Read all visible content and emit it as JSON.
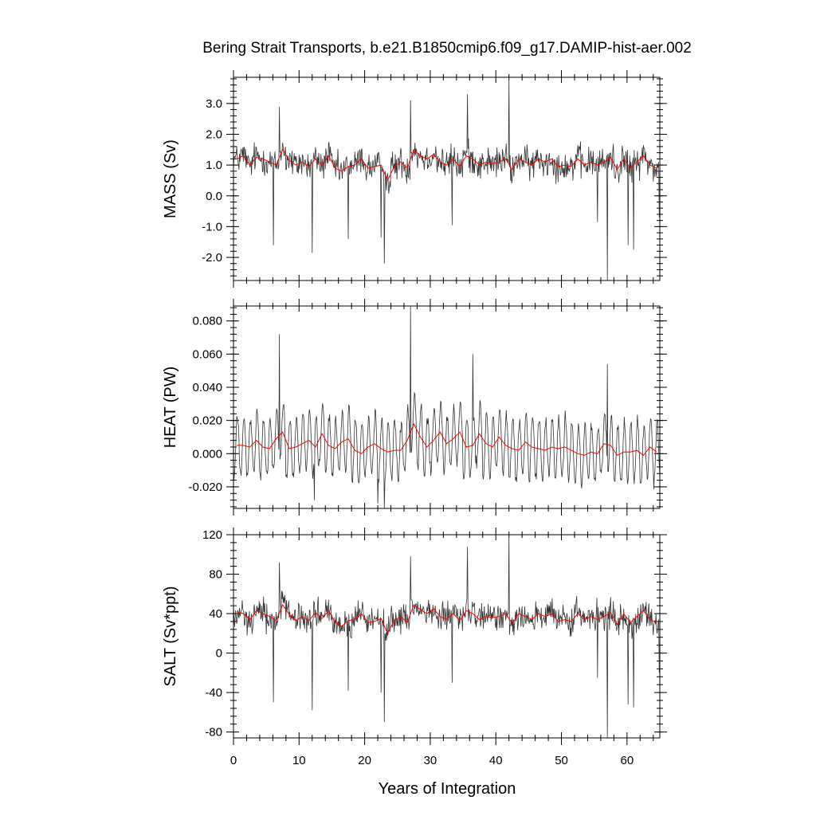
{
  "chart_data": {
    "title": "Bering Strait Transports, b.e21.B1850cmip6.f09_g17.DAMIP-hist-aer.002",
    "xlabel": "Years of Integration",
    "xlim": [
      0,
      65
    ],
    "xticks": [
      {
        "value": 0,
        "label": "0"
      },
      {
        "value": 10,
        "label": "10"
      },
      {
        "value": 20,
        "label": "20"
      },
      {
        "value": 30,
        "label": "30"
      },
      {
        "value": 40,
        "label": "40"
      },
      {
        "value": 50,
        "label": "50"
      },
      {
        "value": 60,
        "label": "60"
      }
    ],
    "line_colors": {
      "monthly": "#333333",
      "annual": "#ff0000"
    },
    "panels": [
      {
        "id": "mass",
        "type": "line",
        "ylabel": "MASS (Sv)",
        "ylim": [
          -2.75,
          3.85
        ],
        "yticks": [
          {
            "value": 3.0,
            "label": "3.0"
          },
          {
            "value": 2.0,
            "label": "2.0"
          },
          {
            "value": 1.0,
            "label": "1.0"
          },
          {
            "value": 0.0,
            "label": "0.0"
          },
          {
            "value": -1.0,
            "label": "-1.0"
          },
          {
            "value": -2.0,
            "label": "-2.0"
          }
        ],
        "minor_step": 0.2,
        "annual_mean": [
          1.2,
          1.3,
          1.0,
          1.25,
          1.2,
          1.1,
          1.0,
          1.5,
          1.15,
          1.0,
          1.1,
          0.95,
          1.2,
          1.0,
          1.3,
          0.9,
          0.8,
          0.95,
          1.0,
          1.2,
          0.9,
          0.95,
          1.0,
          0.5,
          0.95,
          1.1,
          0.9,
          1.5,
          1.3,
          1.2,
          1.35,
          1.1,
          1.0,
          1.2,
          0.95,
          1.3,
          1.2,
          1.0,
          1.1,
          1.05,
          1.1,
          1.2,
          0.85,
          1.2,
          1.1,
          1.0,
          1.2,
          1.1,
          1.2,
          0.95,
          1.0,
          0.95,
          1.2,
          1.0,
          1.1,
          1.0,
          1.1,
          1.25,
          0.85,
          1.2,
          0.9,
          1.1,
          1.3,
          1.0,
          0.9
        ],
        "spikes": [
          {
            "x": 6.1,
            "y": -1.6
          },
          {
            "x": 7.0,
            "y": 2.9
          },
          {
            "x": 12.0,
            "y": -1.85
          },
          {
            "x": 17.5,
            "y": -1.4
          },
          {
            "x": 22.5,
            "y": -1.35
          },
          {
            "x": 23.0,
            "y": -2.2
          },
          {
            "x": 27.0,
            "y": 3.1
          },
          {
            "x": 33.3,
            "y": -0.95
          },
          {
            "x": 35.7,
            "y": 3.3
          },
          {
            "x": 42.0,
            "y": 3.85
          },
          {
            "x": 55.5,
            "y": -0.85
          },
          {
            "x": 57.0,
            "y": -2.75
          },
          {
            "x": 60.2,
            "y": -1.6
          },
          {
            "x": 61.0,
            "y": -1.75
          },
          {
            "x": 64.9,
            "y": -0.7
          }
        ]
      },
      {
        "id": "heat",
        "type": "line",
        "ylabel": "HEAT (PW)",
        "ylim": [
          -0.033,
          0.089
        ],
        "yticks": [
          {
            "value": 0.08,
            "label": "0.080"
          },
          {
            "value": 0.06,
            "label": "0.060"
          },
          {
            "value": 0.04,
            "label": "0.040"
          },
          {
            "value": 0.02,
            "label": "0.020"
          },
          {
            "value": 0.0,
            "label": "0.000"
          },
          {
            "value": -0.02,
            "label": "-0.020"
          }
        ],
        "minor_step": 0.004,
        "annual_mean": [
          0.005,
          0.005,
          0.004,
          0.008,
          0.004,
          0.003,
          0.009,
          0.013,
          0.003,
          0.004,
          0.006,
          0.008,
          0.004,
          0.012,
          0.005,
          0.003,
          0.007,
          0.009,
          0.002,
          0.0,
          0.004,
          0.006,
          0.003,
          0.001,
          0.002,
          0.002,
          0.008,
          0.018,
          0.01,
          0.004,
          0.008,
          0.013,
          0.006,
          0.009,
          0.013,
          0.004,
          0.005,
          0.012,
          0.006,
          0.004,
          0.01,
          0.005,
          0.003,
          0.002,
          0.007,
          0.004,
          0.003,
          0.002,
          0.004,
          0.003,
          0.004,
          0.002,
          0.0,
          -0.001,
          0.001,
          0.0,
          0.006,
          0.005,
          -0.001,
          0.001,
          0.001,
          0.002,
          -0.001,
          0.004,
          0.001
        ],
        "spikes": [
          {
            "x": 7.0,
            "y": 0.072
          },
          {
            "x": 12.3,
            "y": -0.028
          },
          {
            "x": 22.0,
            "y": -0.03
          },
          {
            "x": 23.0,
            "y": -0.033
          },
          {
            "x": 27.0,
            "y": 0.089
          },
          {
            "x": 36.5,
            "y": 0.06
          },
          {
            "x": 57.0,
            "y": 0.054
          }
        ]
      },
      {
        "id": "salt",
        "type": "line",
        "ylabel": "SALT (Sv*ppt)",
        "ylim": [
          -86,
          120
        ],
        "yticks": [
          {
            "value": 120,
            "label": "120"
          },
          {
            "value": 80,
            "label": "80"
          },
          {
            "value": 40,
            "label": "40"
          },
          {
            "value": 0,
            "label": "0"
          },
          {
            "value": -40,
            "label": "-40"
          },
          {
            "value": -80,
            "label": "-80"
          }
        ],
        "minor_step": 8,
        "annual_mean": [
          42,
          40,
          34,
          43,
          40,
          37,
          33,
          49,
          39,
          33,
          37,
          33,
          41,
          35,
          43,
          31,
          27,
          33,
          34,
          40,
          31,
          32,
          35,
          20,
          33,
          37,
          31,
          49,
          44,
          40,
          45,
          37,
          34,
          40,
          33,
          43,
          40,
          34,
          37,
          36,
          37,
          40,
          30,
          40,
          37,
          34,
          40,
          37,
          40,
          32,
          34,
          32,
          40,
          34,
          37,
          34,
          37,
          41,
          29,
          40,
          31,
          37,
          43,
          34,
          31
        ],
        "spikes": [
          {
            "x": 6.1,
            "y": -50
          },
          {
            "x": 7.0,
            "y": 92
          },
          {
            "x": 12.0,
            "y": -58
          },
          {
            "x": 17.5,
            "y": -38
          },
          {
            "x": 22.5,
            "y": -40
          },
          {
            "x": 23.0,
            "y": -70
          },
          {
            "x": 27.0,
            "y": 98
          },
          {
            "x": 33.3,
            "y": -30
          },
          {
            "x": 35.7,
            "y": 108
          },
          {
            "x": 42.0,
            "y": 120
          },
          {
            "x": 55.5,
            "y": -25
          },
          {
            "x": 57.0,
            "y": -86
          },
          {
            "x": 60.2,
            "y": -52
          },
          {
            "x": 61.0,
            "y": -55
          },
          {
            "x": 64.9,
            "y": -20
          }
        ]
      }
    ]
  }
}
